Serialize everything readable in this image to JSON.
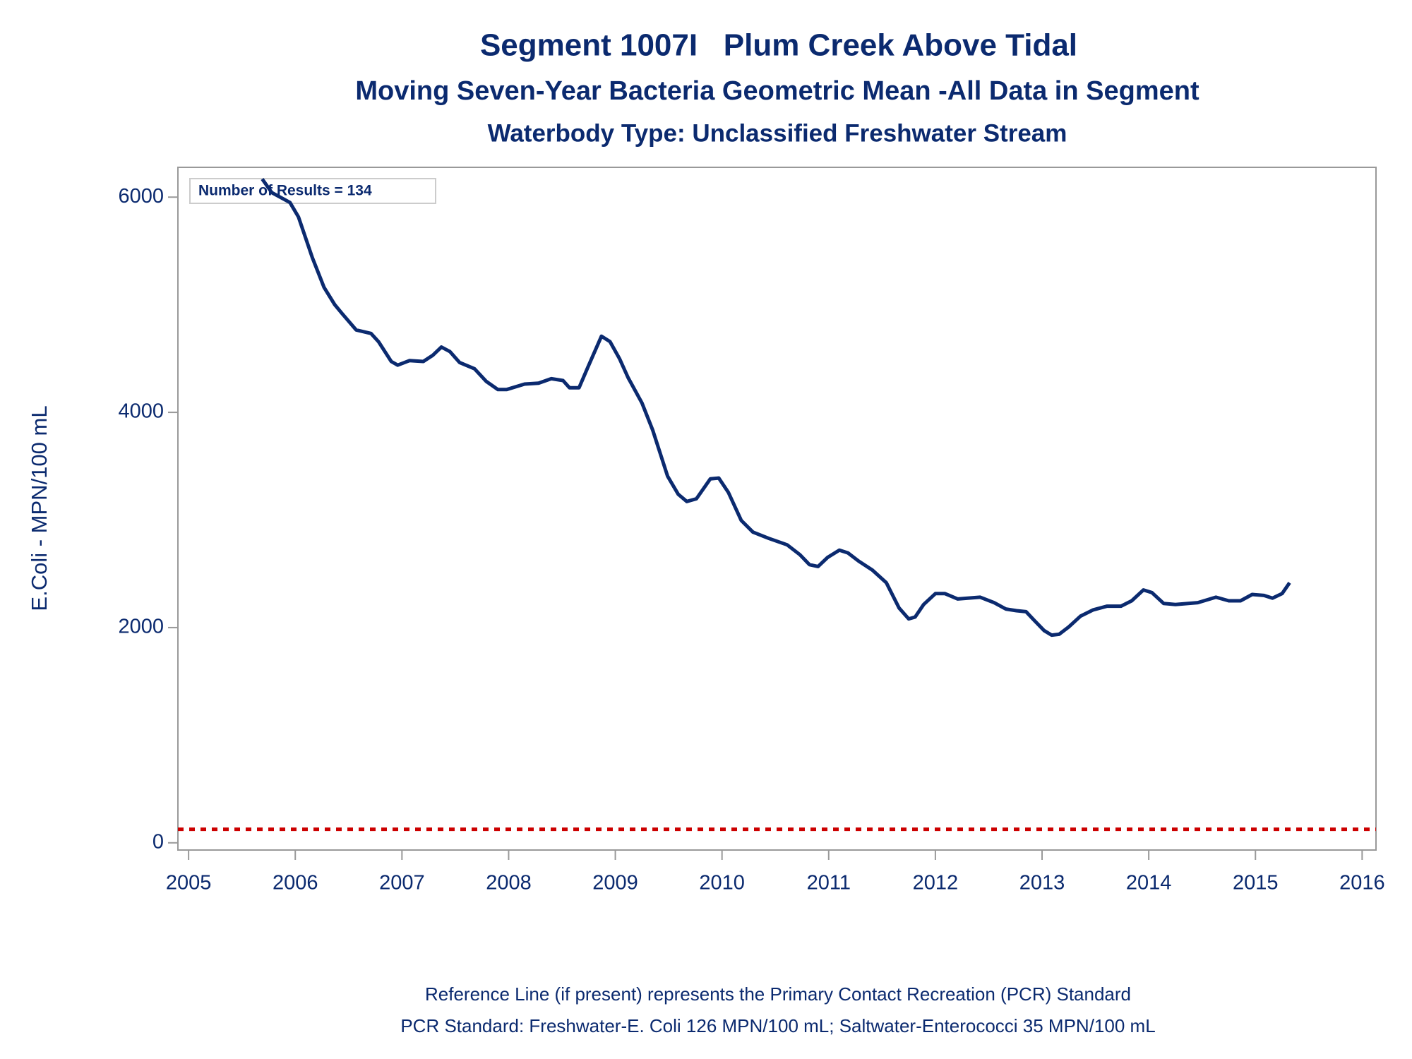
{
  "chart_data": {
    "type": "line",
    "title": "Segment 1007I   Plum Creek Above Tidal",
    "subtitle": "Moving Seven-Year Bacteria Geometric Mean -All Data in Segment",
    "subtitle2": "Waterbody Type: Unclassified Freshwater Stream",
    "y_label": "E.Coli - MPN/100 mL",
    "annotation": "Number of Results = 134",
    "footnotes": [
      "Reference Line (if present) represents the Primary Contact Recreation (PCR) Standard",
      "PCR Standard: Freshwater-E. Coli 126 MPN/100 mL; Saltwater-Enterococci 35 MPN/100 mL"
    ],
    "reference_line": {
      "value": 126,
      "color": "#cc0000"
    },
    "xlim": [
      2004.9,
      2016.13
    ],
    "ylim": [
      -67,
      6277
    ],
    "xticks": [
      2005,
      2006,
      2007,
      2008,
      2009,
      2010,
      2011,
      2012,
      2013,
      2014,
      2015,
      2016
    ],
    "yticks": [
      0,
      2000,
      4000,
      6000
    ],
    "grid": false,
    "series": [
      {
        "name": "Geometric Mean",
        "color": "#0b2a6f",
        "x": [
          2005.69,
          2005.78,
          2005.95,
          2006.03,
          2006.16,
          2006.27,
          2006.37,
          2006.44,
          2006.57,
          2006.71,
          2006.78,
          2006.9,
          2006.96,
          2007.07,
          2007.2,
          2007.29,
          2007.37,
          2007.45,
          2007.54,
          2007.68,
          2007.79,
          2007.9,
          2007.98,
          2008.15,
          2008.28,
          2008.4,
          2008.51,
          2008.57,
          2008.66,
          2008.74,
          2008.87,
          2008.95,
          2009.04,
          2009.12,
          2009.25,
          2009.35,
          2009.49,
          2009.59,
          2009.67,
          2009.76,
          2009.89,
          2009.97,
          2010.06,
          2010.18,
          2010.29,
          2010.44,
          2010.61,
          2010.73,
          2010.82,
          2010.9,
          2010.99,
          2011.1,
          2011.18,
          2011.28,
          2011.41,
          2011.54,
          2011.66,
          2011.75,
          2011.81,
          2011.89,
          2012.0,
          2012.09,
          2012.21,
          2012.42,
          2012.55,
          2012.66,
          2012.76,
          2012.85,
          2012.93,
          2013.02,
          2013.09,
          2013.16,
          2013.25,
          2013.36,
          2013.48,
          2013.61,
          2013.74,
          2013.84,
          2013.95,
          2014.03,
          2014.14,
          2014.25,
          2014.46,
          2014.63,
          2014.75,
          2014.86,
          2014.97,
          2015.08,
          2015.16,
          2015.25,
          2015.32
        ],
        "values": [
          6168,
          6042,
          5950,
          5815,
          5438,
          5161,
          5001,
          4917,
          4766,
          4733,
          4657,
          4473,
          4439,
          4481,
          4473,
          4531,
          4607,
          4565,
          4464,
          4405,
          4288,
          4212,
          4212,
          4263,
          4271,
          4313,
          4296,
          4229,
          4229,
          4414,
          4708,
          4657,
          4498,
          4322,
          4087,
          3835,
          3407,
          3239,
          3172,
          3197,
          3382,
          3390,
          3256,
          2996,
          2887,
          2828,
          2769,
          2677,
          2585,
          2568,
          2652,
          2719,
          2694,
          2618,
          2534,
          2417,
          2182,
          2081,
          2098,
          2215,
          2316,
          2316,
          2266,
          2282,
          2232,
          2173,
          2157,
          2148,
          2064,
          1972,
          1930,
          1938,
          2006,
          2106,
          2165,
          2199,
          2199,
          2249,
          2350,
          2325,
          2224,
          2215,
          2232,
          2282,
          2249,
          2249,
          2308,
          2299,
          2274,
          2316,
          2417
        ]
      }
    ]
  }
}
